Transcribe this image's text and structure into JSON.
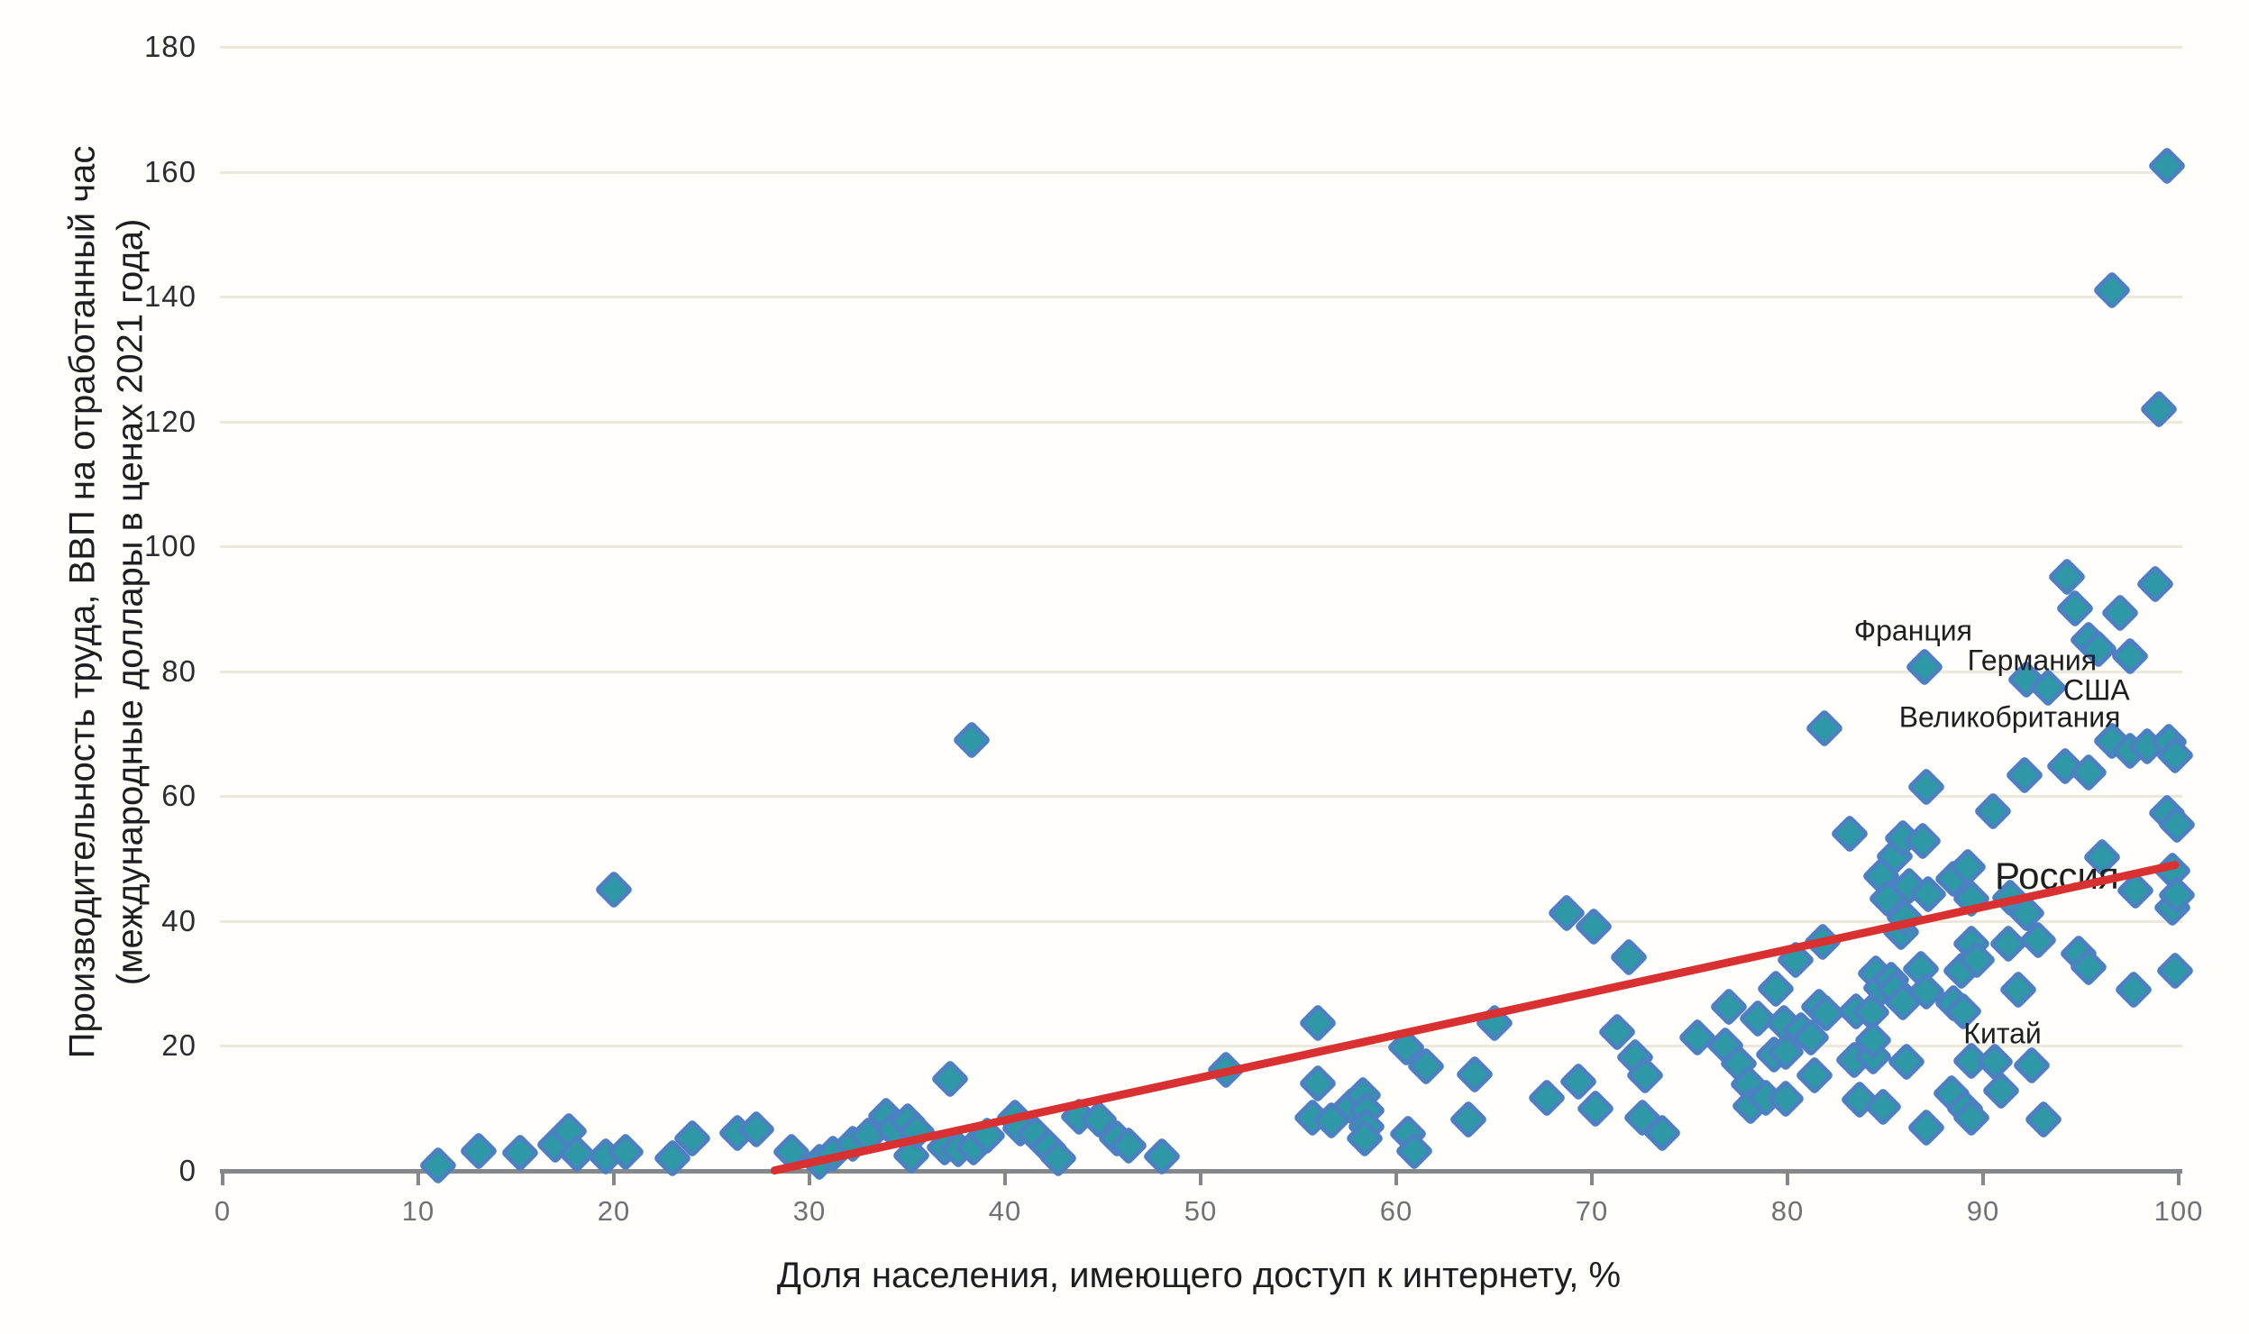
{
  "chart_data": {
    "type": "scatter",
    "title": "",
    "xlabel": "Доля населения, имеющего доступ к интернету, %",
    "ylabel_line1": "Производительность труда, ВВП на отработанный час",
    "ylabel_line2": "(международные доллары в ценах 2021 года)",
    "xlim": [
      0,
      100
    ],
    "ylim": [
      0,
      180
    ],
    "x_ticks": [
      0,
      10,
      20,
      30,
      40,
      50,
      60,
      70,
      80,
      90,
      100
    ],
    "y_ticks": [
      0,
      20,
      40,
      60,
      80,
      100,
      120,
      140,
      160,
      180
    ],
    "grid": "horizontal-only",
    "legend": "none",
    "marker": "diamond",
    "trend_line": {
      "x1": 28,
      "y1": 0,
      "x2": 100,
      "y2": 49.2
    },
    "points": [
      [
        11,
        0.8
      ],
      [
        13.1,
        3.2
      ],
      [
        15.2,
        2.9
      ],
      [
        17,
        4.2
      ],
      [
        17.7,
        6.4
      ],
      [
        18.1,
        2.8
      ],
      [
        19.6,
        2.3
      ],
      [
        20,
        45
      ],
      [
        20.6,
        3
      ],
      [
        23,
        2
      ],
      [
        24,
        5.2
      ],
      [
        26.3,
        6.1
      ],
      [
        27.3,
        6.7
      ],
      [
        29.1,
        3
      ],
      [
        30.5,
        1.4
      ],
      [
        31.2,
        2.7
      ],
      [
        32.2,
        4.4
      ],
      [
        33,
        5.7
      ],
      [
        33.9,
        8.8
      ],
      [
        34.3,
        6.6
      ],
      [
        35,
        7.9
      ],
      [
        35.2,
        2.5
      ],
      [
        35.5,
        6.3
      ],
      [
        36.9,
        3.7
      ],
      [
        37.2,
        14.7
      ],
      [
        37.6,
        3.5
      ],
      [
        38.3,
        69
      ],
      [
        38.4,
        3.7
      ],
      [
        39.1,
        5.6
      ],
      [
        40.5,
        8.5
      ],
      [
        40.8,
        6.8
      ],
      [
        41.5,
        5.9
      ],
      [
        42.2,
        3.7
      ],
      [
        42.7,
        2
      ],
      [
        43.8,
        8.6
      ],
      [
        44.8,
        8.2
      ],
      [
        45.7,
        5.2
      ],
      [
        46.3,
        4
      ],
      [
        48,
        2.3
      ],
      [
        51.3,
        16.2
      ],
      [
        55.7,
        8.5
      ],
      [
        56,
        23.7
      ],
      [
        56,
        14
      ],
      [
        56.7,
        8.1
      ],
      [
        57.7,
        10.4
      ],
      [
        58.3,
        12.1
      ],
      [
        58.5,
        9.7
      ],
      [
        58.5,
        7.1
      ],
      [
        58.4,
        5.2
      ],
      [
        60.5,
        19.8
      ],
      [
        60.6,
        5.9
      ],
      [
        60.9,
        3.2
      ],
      [
        61.5,
        16.7
      ],
      [
        63.7,
        8.2
      ],
      [
        64,
        15.5
      ],
      [
        65,
        23.7
      ],
      [
        67.7,
        11.7
      ],
      [
        68.7,
        41.3
      ],
      [
        69.3,
        14.3
      ],
      [
        70.1,
        39.1
      ],
      [
        70.2,
        10
      ],
      [
        71.3,
        22.2
      ],
      [
        71.9,
        34.2
      ],
      [
        72.2,
        18.2
      ],
      [
        72.6,
        8.5
      ],
      [
        72.7,
        15.3
      ],
      [
        73.6,
        6.1
      ],
      [
        75.4,
        21.3
      ],
      [
        76.8,
        20.1
      ],
      [
        77,
        26.3
      ],
      [
        77.5,
        17.2
      ],
      [
        78,
        13.8
      ],
      [
        78.1,
        10.4
      ],
      [
        78.5,
        24.4
      ],
      [
        78.9,
        11.7
      ],
      [
        79.3,
        18.6
      ],
      [
        79.4,
        29.2
      ],
      [
        79.8,
        23.7
      ],
      [
        79.9,
        19.1
      ],
      [
        79.9,
        11.5
      ],
      [
        80.4,
        33.8
      ],
      [
        80.7,
        22.5
      ],
      [
        81.2,
        21.4
      ],
      [
        81.4,
        15.3
      ],
      [
        81.6,
        26.3
      ],
      [
        81.8,
        36.7
      ],
      [
        81.9,
        70.9
      ],
      [
        82,
        25.3
      ],
      [
        83.2,
        54
      ],
      [
        83.4,
        17.7
      ],
      [
        83.5,
        25.6
      ],
      [
        83.7,
        11.4
      ],
      [
        84.3,
        25.4
      ],
      [
        84.4,
        18.3
      ],
      [
        84.4,
        20.9
      ],
      [
        84.5,
        31.6
      ],
      [
        84.8,
        29.3
      ],
      [
        84.8,
        47.2
      ],
      [
        84.9,
        10.2
      ],
      [
        85.1,
        43.6
      ],
      [
        85.3,
        30.6
      ],
      [
        85.5,
        29
      ],
      [
        85.5,
        50.4
      ],
      [
        85.8,
        38.2
      ],
      [
        85.9,
        27
      ],
      [
        85.9,
        53.3
      ],
      [
        86,
        40.5
      ],
      [
        86.1,
        17.4
      ],
      [
        86.2,
        45.6
      ],
      [
        86.8,
        32.3
      ],
      [
        86.9,
        52.8
      ],
      [
        87,
        80.7
      ],
      [
        87.1,
        28.7
      ],
      [
        87.1,
        7
      ],
      [
        87.1,
        61.5
      ],
      [
        87.2,
        44.3
      ],
      [
        88.4,
        12.4
      ],
      [
        88.5,
        26.8
      ],
      [
        88.5,
        46.8
      ],
      [
        88.9,
        32.1
      ],
      [
        89,
        25.6
      ],
      [
        89.1,
        10
      ],
      [
        89.2,
        48.6
      ],
      [
        89.4,
        8.5
      ],
      [
        89.4,
        17.6
      ],
      [
        89.4,
        36.4
      ],
      [
        89.4,
        43.6
      ],
      [
        89.7,
        33.8
      ],
      [
        90.5,
        57.6
      ],
      [
        90.6,
        17.5
      ],
      [
        90.9,
        12.8
      ],
      [
        91.3,
        36.4
      ],
      [
        91.4,
        43.8
      ],
      [
        91.8,
        29
      ],
      [
        92.1,
        63.4
      ],
      [
        92.2,
        41.3
      ],
      [
        92.2,
        78.6
      ],
      [
        92.5,
        16.9
      ],
      [
        92.8,
        37
      ],
      [
        93.1,
        8.2
      ],
      [
        93.3,
        77.4
      ],
      [
        94.2,
        64.8
      ],
      [
        94.3,
        95.1
      ],
      [
        94.7,
        90.1
      ],
      [
        94.9,
        34.8
      ],
      [
        95.4,
        32.6
      ],
      [
        95.4,
        63.8
      ],
      [
        95.4,
        85
      ],
      [
        95.9,
        83.6
      ],
      [
        96.1,
        50.3
      ],
      [
        96.6,
        141
      ],
      [
        96.6,
        68.9
      ],
      [
        97,
        89.4
      ],
      [
        97.5,
        67.3
      ],
      [
        97.5,
        82.4
      ],
      [
        97.7,
        29
      ],
      [
        97.8,
        44.9
      ],
      [
        98.4,
        68
      ],
      [
        98.8,
        94
      ],
      [
        99,
        122
      ],
      [
        99.4,
        161
      ],
      [
        99.4,
        57.3
      ],
      [
        99.5,
        68.7
      ],
      [
        99.7,
        48
      ],
      [
        99.7,
        42.1
      ],
      [
        99.8,
        32.1
      ],
      [
        99.8,
        66.5
      ],
      [
        99.9,
        44.2
      ],
      [
        99.9,
        55.5
      ]
    ],
    "annotations": [
      {
        "text": "Франция",
        "x": 83.4,
        "y": 86.5,
        "font_px": 32
      },
      {
        "text": "Германия",
        "x": 89.2,
        "y": 81.7,
        "font_px": 32
      },
      {
        "text": "США",
        "x": 94.1,
        "y": 76.9,
        "font_px": 32
      },
      {
        "text": "Великобритания",
        "x": 85.7,
        "y": 72.6,
        "font_px": 32
      },
      {
        "text": "Россия",
        "x": 90.6,
        "y": 47.2,
        "font_px": 42
      },
      {
        "text": "Китай",
        "x": 89.0,
        "y": 21.9,
        "font_px": 32
      }
    ],
    "colors": {
      "marker_fill": "#2e98a6",
      "marker_border": "#4c80c2",
      "trend": "#d93032",
      "grid": "#ece9dc",
      "axis": "#85888b",
      "x_tick_text": "#6f7275",
      "y_tick_text": "#2a2d30",
      "label_text": "#1c1e20",
      "background": "#fffefa"
    }
  }
}
